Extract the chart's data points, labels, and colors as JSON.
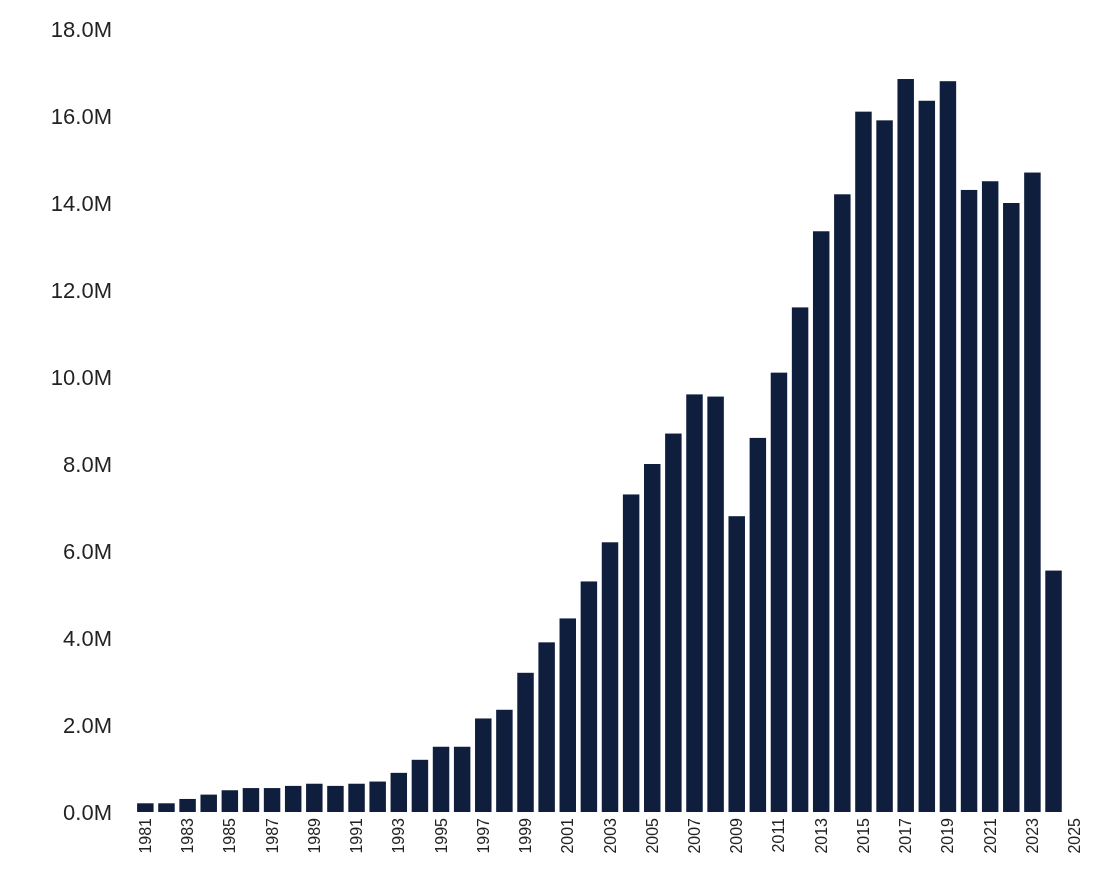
{
  "chart_data": {
    "type": "bar",
    "categories": [
      "1981",
      null,
      "1983",
      null,
      "1985",
      null,
      "1987",
      null,
      "1989",
      null,
      "1991",
      null,
      "1993",
      null,
      "1995",
      null,
      "1997",
      null,
      "1999",
      null,
      "2001",
      null,
      "2003",
      null,
      "2005",
      null,
      "2007",
      null,
      "2009",
      null,
      "2011",
      null,
      "2013",
      null,
      "2015",
      null,
      "2017",
      null,
      "2019",
      null,
      "2021",
      null,
      "2023",
      null,
      "2025"
    ],
    "values": [
      0.2,
      0.2,
      0.3,
      0.4,
      0.5,
      0.55,
      0.55,
      0.6,
      0.65,
      0.6,
      0.65,
      0.7,
      0.9,
      1.2,
      1.5,
      1.5,
      2.15,
      2.35,
      3.2,
      3.9,
      4.45,
      5.3,
      6.2,
      7.3,
      8.0,
      8.7,
      9.6,
      9.55,
      6.8,
      8.6,
      10.1,
      11.6,
      13.35,
      14.2,
      16.1,
      15.9,
      16.85,
      16.35,
      16.8,
      14.3,
      14.5,
      14.0,
      14.7,
      5.55,
      null
    ],
    "color": "#0f1e3d",
    "ylim": [
      0,
      18
    ],
    "yticks": [
      {
        "value": 0,
        "label": "0.0M"
      },
      {
        "value": 2,
        "label": "2.0M"
      },
      {
        "value": 4,
        "label": "4.0M"
      },
      {
        "value": 6,
        "label": "6.0M"
      },
      {
        "value": 8,
        "label": "8.0M"
      },
      {
        "value": 10,
        "label": "10.0M"
      },
      {
        "value": 12,
        "label": "12.0M"
      },
      {
        "value": 14,
        "label": "14.0M"
      },
      {
        "value": 16,
        "label": "16.0M"
      },
      {
        "value": 18,
        "label": "18.0M"
      }
    ],
    "grid": false
  }
}
